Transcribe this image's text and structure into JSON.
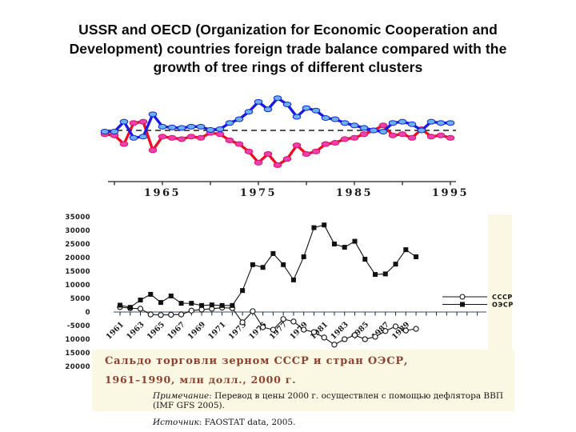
{
  "slide": {
    "title_lines": [
      "USSR and OECD (Organization for Economic Cooperation and",
      "Development) countries foreign trade balance compared with the",
      "growth of tree rings of different clusters"
    ]
  },
  "colors": {
    "caption_bg": "#faf7e2",
    "caption_heading": "#8b4433",
    "blue_line": "#1b1be0",
    "blue_marker": "#6cb0f2",
    "red_line": "#ea1022",
    "red_marker": "#f03fae",
    "series_black": "#111111",
    "axis_gray": "#7b8a99"
  },
  "chart_data": [
    {
      "type": "line",
      "name": "tree-ring-growth-clusters",
      "description": "growth of tree rings of two clusters around zero baseline",
      "x": [
        1959,
        1960,
        1961,
        1962,
        1963,
        1964,
        1965,
        1966,
        1967,
        1968,
        1969,
        1970,
        1971,
        1972,
        1973,
        1974,
        1975,
        1976,
        1977,
        1978,
        1979,
        1980,
        1981,
        1982,
        1983,
        1984,
        1985,
        1986,
        1987,
        1988,
        1989,
        1990,
        1991,
        1992,
        1993,
        1994,
        1995
      ],
      "series": [
        {
          "name": "cluster-red",
          "color": "#ea1022",
          "marker": "ellipse",
          "marker_fill": "#f03fae",
          "marker_stroke": "#d8126e",
          "values": [
            -0.15,
            -0.2,
            -0.55,
            0.3,
            0.35,
            -0.8,
            -0.25,
            -0.3,
            -0.35,
            -0.25,
            -0.3,
            -0.1,
            -0.15,
            -0.4,
            -0.55,
            -0.85,
            -1.3,
            -0.95,
            -1.4,
            -1.15,
            -0.6,
            -0.95,
            -0.85,
            -0.55,
            -0.5,
            -0.35,
            -0.3,
            -0.15,
            0.0,
            0.2,
            -0.2,
            -0.15,
            -0.3,
            0.05,
            -0.25,
            -0.2,
            -0.3
          ]
        },
        {
          "name": "cluster-blue",
          "color": "#1b1be0",
          "marker": "ellipse",
          "marker_fill": "#6cb0f2",
          "marker_stroke": "#1326d8",
          "values": [
            -0.05,
            -0.05,
            0.35,
            -0.3,
            -0.25,
            0.65,
            0.15,
            0.12,
            0.1,
            0.15,
            0.15,
            0.02,
            0.05,
            0.3,
            0.45,
            0.75,
            1.15,
            0.85,
            1.3,
            1.05,
            0.55,
            0.9,
            0.8,
            0.5,
            0.45,
            0.3,
            0.2,
            0.1,
            0.0,
            -0.05,
            0.3,
            0.35,
            0.25,
            0.0,
            0.35,
            0.3,
            0.3
          ]
        }
      ],
      "baseline": 0,
      "x_ticks": [
        1960,
        1965,
        1970,
        1975,
        1980,
        1985,
        1990,
        1995
      ],
      "x_tick_labels": [
        "1965",
        "1975",
        "1985",
        "1995"
      ],
      "ylim": [
        -1.6,
        1.5
      ],
      "grid": false,
      "legend": "none"
    },
    {
      "type": "line",
      "name": "grain-trade-balance",
      "title": "Сальдо торговли зерном СССР и стран ОЭСР,",
      "subtitle": "1961–1990, млн долл., 2000 г.",
      "x": [
        1961,
        1962,
        1963,
        1964,
        1965,
        1966,
        1967,
        1968,
        1969,
        1970,
        1971,
        1972,
        1973,
        1974,
        1975,
        1976,
        1977,
        1978,
        1979,
        1980,
        1981,
        1982,
        1983,
        1984,
        1985,
        1986,
        1987,
        1988,
        1989,
        1990
      ],
      "series": [
        {
          "name": "СССР",
          "marker": "circle",
          "color": "#111111",
          "values": [
            1800,
            1400,
            1200,
            -900,
            -1100,
            -1000,
            -900,
            500,
            900,
            1200,
            1600,
            1400,
            -3800,
            300,
            -5600,
            -6500,
            -2600,
            -3500,
            -6500,
            -7400,
            -9400,
            -12000,
            -10000,
            -8500,
            -10000,
            -9100,
            -7000,
            -5300,
            -6800,
            -6200
          ]
        },
        {
          "name": "ОЭСР",
          "marker": "square",
          "color": "#111111",
          "values": [
            2500,
            1700,
            4400,
            6500,
            3500,
            5900,
            3200,
            3200,
            2400,
            2600,
            2400,
            2400,
            7900,
            17400,
            16400,
            21500,
            17400,
            11800,
            20300,
            31000,
            32000,
            25000,
            23800,
            26000,
            19400,
            13800,
            14000,
            17600,
            22900,
            20300
          ]
        }
      ],
      "y_ticks": [
        35000,
        30000,
        25000,
        20000,
        15000,
        10000,
        5000,
        0,
        -5000,
        -10000,
        -15000,
        -20000
      ],
      "x_labels": [
        "1961",
        "1963",
        "1965",
        "1967",
        "1969",
        "1971",
        "1973",
        "1975",
        "1977",
        "1979",
        "1981",
        "1983",
        "1985",
        "1987",
        "1989"
      ],
      "ylim": [
        -20000,
        35000
      ],
      "grid": false,
      "legend_position": "right"
    }
  ],
  "caption": {
    "line1": "Сальдо торговли зерном СССР и стран ОЭСР,",
    "line2": "1961–1990, млн долл., 2000 г.",
    "note_label": "Примечание",
    "note_text": ": Перевод в цены 2000 г. осуществлен с помощью дефлятора ВВП (IMF GFS 2005).",
    "source_label": "Источник",
    "source_text": ": FAOSTAT data, 2005."
  }
}
